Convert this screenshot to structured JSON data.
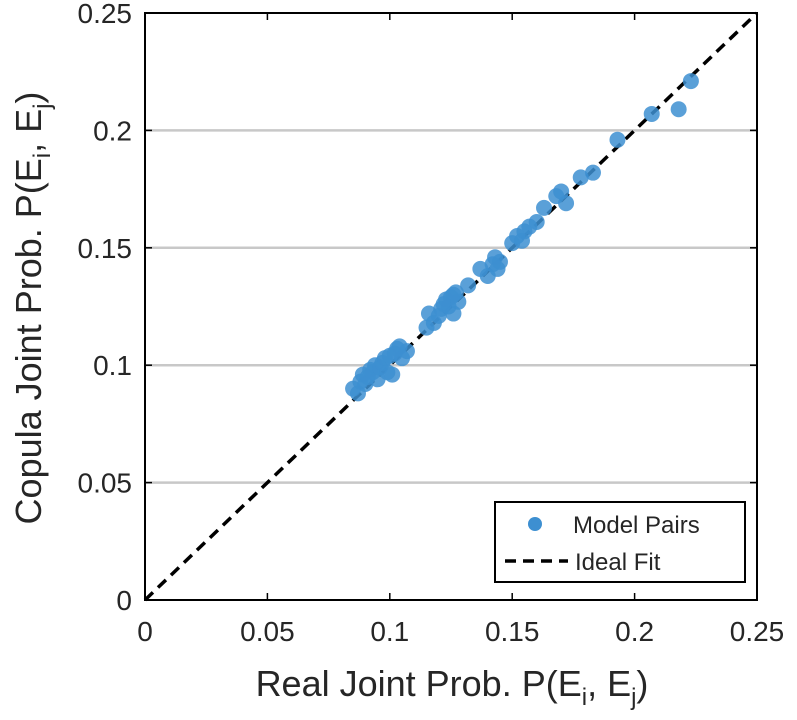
{
  "chart_data": {
    "type": "scatter",
    "xlabel": {
      "text": "Real Joint Prob. P(E",
      "sub1": "i",
      "mid": ", E",
      "sub2": "j",
      "end": ")"
    },
    "ylabel": {
      "text": "Copula Joint Prob. P(E",
      "sub1": "i",
      "mid": ", E",
      "sub2": "j",
      "end": ")"
    },
    "xlim": [
      0,
      0.25
    ],
    "ylim": [
      0,
      0.25
    ],
    "x_ticks": [
      0,
      0.05,
      0.1,
      0.15,
      0.2,
      0.25
    ],
    "x_tick_labels": [
      "0",
      "0.05",
      "0.1",
      "0.15",
      "0.2",
      "0.25"
    ],
    "y_ticks": [
      0,
      0.05,
      0.1,
      0.15,
      0.2,
      0.25
    ],
    "y_tick_labels": [
      "0",
      "0.05",
      "0.1",
      "0.15",
      "0.2",
      "0.25"
    ],
    "y_grid": true,
    "x_grid": false,
    "legend": {
      "placement": "bottom-right",
      "entries": [
        "Model Pairs",
        "Ideal Fit"
      ]
    },
    "colors": {
      "points": "#3d8fd1",
      "ideal_line": "#000000",
      "grid": "#c8c8c8",
      "axes": "#000000"
    },
    "series": [
      {
        "name": "Model Pairs",
        "style": "markers",
        "points": [
          [
            0.085,
            0.09
          ],
          [
            0.087,
            0.088
          ],
          [
            0.088,
            0.093
          ],
          [
            0.089,
            0.096
          ],
          [
            0.09,
            0.092
          ],
          [
            0.091,
            0.095
          ],
          [
            0.092,
            0.098
          ],
          [
            0.093,
            0.097
          ],
          [
            0.094,
            0.1
          ],
          [
            0.095,
            0.094
          ],
          [
            0.096,
            0.099
          ],
          [
            0.097,
            0.101
          ],
          [
            0.098,
            0.103
          ],
          [
            0.099,
            0.097
          ],
          [
            0.1,
            0.104
          ],
          [
            0.101,
            0.096
          ],
          [
            0.102,
            0.105
          ],
          [
            0.103,
            0.107
          ],
          [
            0.104,
            0.108
          ],
          [
            0.105,
            0.103
          ],
          [
            0.107,
            0.106
          ],
          [
            0.115,
            0.116
          ],
          [
            0.116,
            0.122
          ],
          [
            0.118,
            0.118
          ],
          [
            0.12,
            0.121
          ],
          [
            0.121,
            0.124
          ],
          [
            0.122,
            0.126
          ],
          [
            0.123,
            0.128
          ],
          [
            0.124,
            0.125
          ],
          [
            0.125,
            0.129
          ],
          [
            0.126,
            0.13
          ],
          [
            0.127,
            0.131
          ],
          [
            0.128,
            0.127
          ],
          [
            0.126,
            0.122
          ],
          [
            0.132,
            0.134
          ],
          [
            0.137,
            0.141
          ],
          [
            0.14,
            0.138
          ],
          [
            0.142,
            0.143
          ],
          [
            0.143,
            0.146
          ],
          [
            0.144,
            0.141
          ],
          [
            0.145,
            0.144
          ],
          [
            0.15,
            0.152
          ],
          [
            0.152,
            0.155
          ],
          [
            0.154,
            0.153
          ],
          [
            0.155,
            0.157
          ],
          [
            0.157,
            0.159
          ],
          [
            0.16,
            0.161
          ],
          [
            0.163,
            0.167
          ],
          [
            0.168,
            0.172
          ],
          [
            0.17,
            0.174
          ],
          [
            0.172,
            0.169
          ],
          [
            0.178,
            0.18
          ],
          [
            0.183,
            0.182
          ],
          [
            0.193,
            0.196
          ],
          [
            0.207,
            0.207
          ],
          [
            0.218,
            0.209
          ],
          [
            0.223,
            0.221
          ]
        ]
      },
      {
        "name": "Ideal Fit",
        "style": "dashed-line",
        "points": [
          [
            0,
            0
          ],
          [
            0.25,
            0.25
          ]
        ]
      }
    ]
  }
}
